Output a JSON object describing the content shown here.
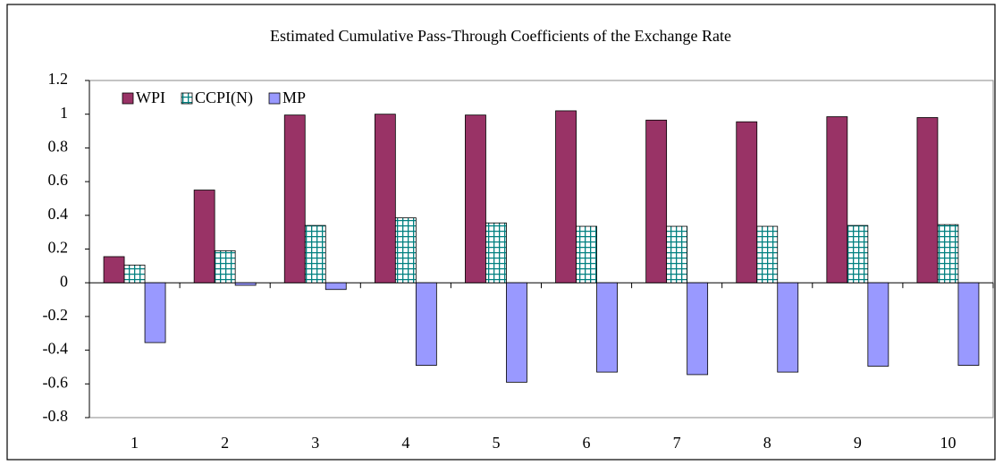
{
  "chart_data": {
    "type": "bar",
    "title": "Estimated Cumulative Pass-Through Coefficients of the Exchange Rate",
    "categories": [
      "1",
      "2",
      "3",
      "4",
      "5",
      "6",
      "7",
      "8",
      "9",
      "10"
    ],
    "series": [
      {
        "name": "WPI",
        "color": "#993366",
        "values": [
          0.155,
          0.55,
          0.995,
          1.0,
          0.995,
          1.02,
          0.965,
          0.955,
          0.985,
          0.98
        ]
      },
      {
        "name": "CCPI(N)",
        "color": "#008080",
        "pattern": "grid",
        "values": [
          0.105,
          0.19,
          0.34,
          0.385,
          0.355,
          0.335,
          0.335,
          0.335,
          0.34,
          0.345
        ]
      },
      {
        "name": "MP",
        "color": "#9999ff",
        "values": [
          -0.355,
          -0.015,
          -0.04,
          -0.49,
          -0.59,
          -0.53,
          -0.545,
          -0.53,
          -0.495,
          -0.49
        ]
      }
    ],
    "ylim": [
      -0.8,
      1.2
    ],
    "yticks": [
      -0.8,
      -0.6,
      -0.4,
      -0.2,
      0,
      0.2,
      0.4,
      0.6,
      0.8,
      1,
      1.2
    ],
    "grid": false,
    "legend": "top-left"
  }
}
